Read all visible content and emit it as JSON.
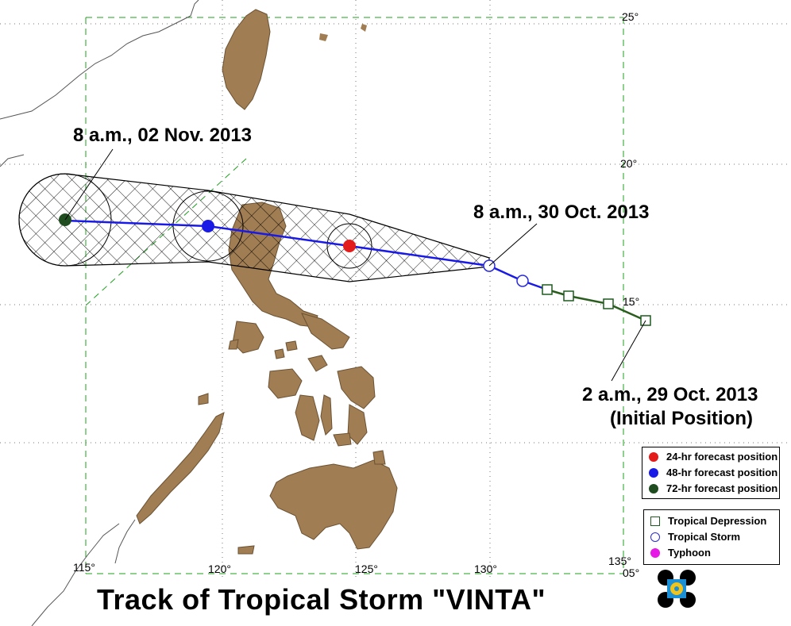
{
  "map": {
    "title": "Track of  Tropical Storm  \"VINTA\"",
    "colors": {
      "land_philippines": "#a07d52",
      "coastline": "#555555",
      "grid": "#1fa01f",
      "track_forecast": "#1a1ae6",
      "track_depression": "#2b5d1f",
      "forecast_24hr": "#e31b1b",
      "forecast_48hr": "#1a1ae6",
      "forecast_72hr": "#1f4d1f",
      "typhoon": "#e619e6"
    },
    "longitude_ticks": [
      "115°",
      "120°",
      "125°",
      "130°",
      "135°"
    ],
    "latitude_ticks": [
      "25°",
      "20°",
      "15°",
      "05°"
    ],
    "annotations": {
      "nov02": "8 a.m.,  02 Nov. 2013",
      "oct30": "8 a.m.,  30 Oct. 2013",
      "initial_time": "2 a.m.,  29 Oct. 2013",
      "initial_note": "(Initial Position)"
    },
    "track": {
      "past_positions": [
        {
          "lon": 134.5,
          "lat": 14.3,
          "category": "Tropical Depression"
        },
        {
          "lon": 133.6,
          "lat": 15.0,
          "category": "Tropical Depression"
        },
        {
          "lon": 132.0,
          "lat": 15.3,
          "category": "Tropical Depression"
        },
        {
          "lon": 131.2,
          "lat": 15.5,
          "category": "Tropical Depression"
        },
        {
          "lon": 130.5,
          "lat": 15.9,
          "category": "Tropical Storm"
        },
        {
          "lon": 130.0,
          "lat": 16.5,
          "category": "Tropical Storm"
        }
      ],
      "forecast_positions": [
        {
          "label": "24-hr forecast position",
          "lon": 124.7,
          "lat": 17.5
        },
        {
          "label": "48-hr forecast position",
          "lon": 119.7,
          "lat": 18.3
        },
        {
          "label": "72-hr forecast position",
          "lon": 114.7,
          "lat": 18.5
        }
      ]
    },
    "legend_forecast": [
      {
        "label": "24-hr forecast position",
        "color": "#e31b1b"
      },
      {
        "label": "48-hr forecast position",
        "color": "#1a1ae6"
      },
      {
        "label": "72-hr forecast position",
        "color": "#1f4d1f"
      }
    ],
    "legend_category": [
      {
        "label": "Tropical Depression",
        "symbol": "square-icon"
      },
      {
        "label": "Tropical Storm",
        "symbol": "ring-icon"
      },
      {
        "label": "Typhoon",
        "symbol": "dot-icon"
      }
    ]
  }
}
